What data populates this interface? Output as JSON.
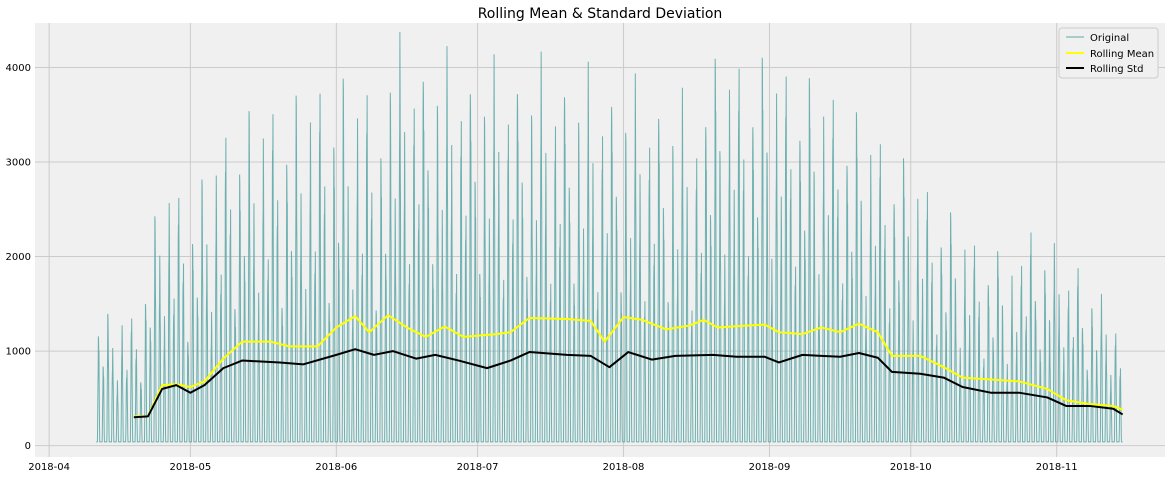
{
  "chart_data": {
    "type": "line",
    "title": "Rolling Mean & Standard Deviation",
    "xlabel": "",
    "ylabel": "",
    "x_range": [
      "2018-03-29",
      "2018-11-24"
    ],
    "ylim": [
      -120,
      4470
    ],
    "x_ticks": [
      {
        "date": "2018-04-01",
        "label": "2018-04"
      },
      {
        "date": "2018-05-01",
        "label": "2018-05"
      },
      {
        "date": "2018-06-01",
        "label": "2018-06"
      },
      {
        "date": "2018-07-01",
        "label": "2018-07"
      },
      {
        "date": "2018-08-01",
        "label": "2018-08"
      },
      {
        "date": "2018-09-01",
        "label": "2018-09"
      },
      {
        "date": "2018-10-01",
        "label": "2018-10"
      },
      {
        "date": "2018-11-01",
        "label": "2018-11"
      }
    ],
    "y_ticks": [
      0,
      1000,
      2000,
      3000,
      4000
    ],
    "grid": true,
    "legend_position": "top-right",
    "original_series": {
      "name": "Original",
      "color": "#5fa9a8",
      "start": "2018-04-11",
      "end": "2018-11-15",
      "daily_peak_envelope": [
        {
          "date": "2018-04-11",
          "value": 1300
        },
        {
          "date": "2018-04-20",
          "value": 1300
        },
        {
          "date": "2018-04-25",
          "value": 2800
        },
        {
          "date": "2018-05-01",
          "value": 2500
        },
        {
          "date": "2018-05-10",
          "value": 3500
        },
        {
          "date": "2018-05-20",
          "value": 3700
        },
        {
          "date": "2018-06-01",
          "value": 4100
        },
        {
          "date": "2018-06-15",
          "value": 4000
        },
        {
          "date": "2018-07-01",
          "value": 3900
        },
        {
          "date": "2018-07-15",
          "value": 4050
        },
        {
          "date": "2018-08-01",
          "value": 4000
        },
        {
          "date": "2018-08-15",
          "value": 3900
        },
        {
          "date": "2018-09-01",
          "value": 4050
        },
        {
          "date": "2018-09-15",
          "value": 3800
        },
        {
          "date": "2018-10-01",
          "value": 3100
        },
        {
          "date": "2018-10-15",
          "value": 2300
        },
        {
          "date": "2018-11-01",
          "value": 2000
        },
        {
          "date": "2018-11-15",
          "value": 1300
        }
      ]
    },
    "series": [
      {
        "name": "Rolling Mean",
        "color": "#ffff00",
        "points": [
          {
            "date": "2018-04-19",
            "value": 310
          },
          {
            "date": "2018-04-22",
            "value": 310
          },
          {
            "date": "2018-04-25",
            "value": 640
          },
          {
            "date": "2018-04-28",
            "value": 650
          },
          {
            "date": "2018-05-01",
            "value": 620
          },
          {
            "date": "2018-05-04",
            "value": 680
          },
          {
            "date": "2018-05-08",
            "value": 920
          },
          {
            "date": "2018-05-12",
            "value": 1100
          },
          {
            "date": "2018-05-18",
            "value": 1100
          },
          {
            "date": "2018-05-22",
            "value": 1050
          },
          {
            "date": "2018-05-28",
            "value": 1050
          },
          {
            "date": "2018-06-01",
            "value": 1250
          },
          {
            "date": "2018-06-05",
            "value": 1370
          },
          {
            "date": "2018-06-08",
            "value": 1200
          },
          {
            "date": "2018-06-12",
            "value": 1380
          },
          {
            "date": "2018-06-16",
            "value": 1250
          },
          {
            "date": "2018-06-20",
            "value": 1150
          },
          {
            "date": "2018-06-24",
            "value": 1260
          },
          {
            "date": "2018-06-28",
            "value": 1150
          },
          {
            "date": "2018-07-05",
            "value": 1180
          },
          {
            "date": "2018-07-08",
            "value": 1200
          },
          {
            "date": "2018-07-12",
            "value": 1350
          },
          {
            "date": "2018-07-20",
            "value": 1340
          },
          {
            "date": "2018-07-25",
            "value": 1320
          },
          {
            "date": "2018-07-28",
            "value": 1100
          },
          {
            "date": "2018-08-01",
            "value": 1360
          },
          {
            "date": "2018-08-05",
            "value": 1330
          },
          {
            "date": "2018-08-10",
            "value": 1230
          },
          {
            "date": "2018-08-15",
            "value": 1270
          },
          {
            "date": "2018-08-18",
            "value": 1330
          },
          {
            "date": "2018-08-21",
            "value": 1250
          },
          {
            "date": "2018-08-27",
            "value": 1270
          },
          {
            "date": "2018-08-31",
            "value": 1280
          },
          {
            "date": "2018-09-03",
            "value": 1200
          },
          {
            "date": "2018-09-08",
            "value": 1180
          },
          {
            "date": "2018-09-12",
            "value": 1250
          },
          {
            "date": "2018-09-16",
            "value": 1200
          },
          {
            "date": "2018-09-20",
            "value": 1290
          },
          {
            "date": "2018-09-24",
            "value": 1200
          },
          {
            "date": "2018-09-27",
            "value": 950
          },
          {
            "date": "2018-10-03",
            "value": 950
          },
          {
            "date": "2018-10-08",
            "value": 830
          },
          {
            "date": "2018-10-12",
            "value": 720
          },
          {
            "date": "2018-10-18",
            "value": 700
          },
          {
            "date": "2018-10-24",
            "value": 680
          },
          {
            "date": "2018-10-30",
            "value": 600
          },
          {
            "date": "2018-11-03",
            "value": 480
          },
          {
            "date": "2018-11-08",
            "value": 440
          },
          {
            "date": "2018-11-13",
            "value": 420
          },
          {
            "date": "2018-11-15",
            "value": 380
          }
        ]
      },
      {
        "name": "Rolling Std",
        "color": "#000000",
        "points": [
          {
            "date": "2018-04-19",
            "value": 300
          },
          {
            "date": "2018-04-22",
            "value": 310
          },
          {
            "date": "2018-04-25",
            "value": 600
          },
          {
            "date": "2018-04-28",
            "value": 640
          },
          {
            "date": "2018-05-01",
            "value": 560
          },
          {
            "date": "2018-05-04",
            "value": 640
          },
          {
            "date": "2018-05-08",
            "value": 820
          },
          {
            "date": "2018-05-12",
            "value": 900
          },
          {
            "date": "2018-05-20",
            "value": 880
          },
          {
            "date": "2018-05-25",
            "value": 860
          },
          {
            "date": "2018-06-01",
            "value": 960
          },
          {
            "date": "2018-06-05",
            "value": 1020
          },
          {
            "date": "2018-06-09",
            "value": 960
          },
          {
            "date": "2018-06-13",
            "value": 1000
          },
          {
            "date": "2018-06-18",
            "value": 920
          },
          {
            "date": "2018-06-22",
            "value": 960
          },
          {
            "date": "2018-06-27",
            "value": 900
          },
          {
            "date": "2018-07-03",
            "value": 820
          },
          {
            "date": "2018-07-08",
            "value": 900
          },
          {
            "date": "2018-07-12",
            "value": 990
          },
          {
            "date": "2018-07-20",
            "value": 960
          },
          {
            "date": "2018-07-25",
            "value": 950
          },
          {
            "date": "2018-07-29",
            "value": 830
          },
          {
            "date": "2018-08-02",
            "value": 990
          },
          {
            "date": "2018-08-07",
            "value": 910
          },
          {
            "date": "2018-08-12",
            "value": 950
          },
          {
            "date": "2018-08-20",
            "value": 960
          },
          {
            "date": "2018-08-25",
            "value": 940
          },
          {
            "date": "2018-08-31",
            "value": 940
          },
          {
            "date": "2018-09-03",
            "value": 880
          },
          {
            "date": "2018-09-08",
            "value": 960
          },
          {
            "date": "2018-09-12",
            "value": 950
          },
          {
            "date": "2018-09-16",
            "value": 940
          },
          {
            "date": "2018-09-20",
            "value": 980
          },
          {
            "date": "2018-09-24",
            "value": 930
          },
          {
            "date": "2018-09-27",
            "value": 780
          },
          {
            "date": "2018-10-03",
            "value": 760
          },
          {
            "date": "2018-10-08",
            "value": 720
          },
          {
            "date": "2018-10-12",
            "value": 620
          },
          {
            "date": "2018-10-18",
            "value": 560
          },
          {
            "date": "2018-10-24",
            "value": 560
          },
          {
            "date": "2018-10-30",
            "value": 510
          },
          {
            "date": "2018-11-03",
            "value": 420
          },
          {
            "date": "2018-11-08",
            "value": 420
          },
          {
            "date": "2018-11-13",
            "value": 390
          },
          {
            "date": "2018-11-15",
            "value": 330
          }
        ]
      }
    ]
  }
}
